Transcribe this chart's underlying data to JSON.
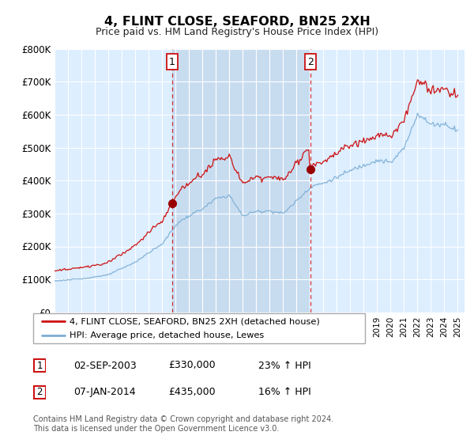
{
  "title": "4, FLINT CLOSE, SEAFORD, BN25 2XH",
  "subtitle": "Price paid vs. HM Land Registry's House Price Index (HPI)",
  "legend_line1": "4, FLINT CLOSE, SEAFORD, BN25 2XH (detached house)",
  "legend_line2": "HPI: Average price, detached house, Lewes",
  "annotation1": {
    "num": "1",
    "date": "02-SEP-2003",
    "price": "£330,000",
    "pct": "23% ↑ HPI"
  },
  "annotation2": {
    "num": "2",
    "date": "07-JAN-2014",
    "price": "£435,000",
    "pct": "16% ↑ HPI"
  },
  "footnote": "Contains HM Land Registry data © Crown copyright and database right 2024.\nThis data is licensed under the Open Government Licence v3.0.",
  "sale1_year": 2003.75,
  "sale1_price": 330000,
  "sale2_year": 2014.04,
  "sale2_price": 435000,
  "hpi_color": "#7aadd4",
  "price_color": "#cc1111",
  "dashed_color": "#cc1111",
  "background_color": "#ddeeff",
  "highlight_color": "#c8dcf0",
  "ylim_min": 0,
  "ylim_max": 800000,
  "xmin": 1995.0,
  "xmax": 2025.5
}
